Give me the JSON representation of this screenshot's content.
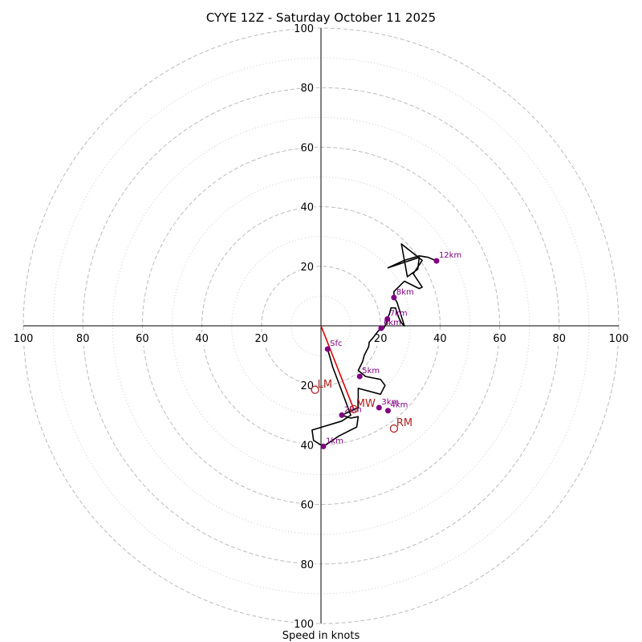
{
  "chart_data": {
    "type": "hodograph",
    "title": "CYYE 12Z - Saturday October 11 2025",
    "xlabel": "Speed in knots",
    "rings_major": [
      20,
      40,
      60,
      80,
      100
    ],
    "rings_minor": [
      10,
      30,
      50,
      70,
      90
    ],
    "range": [
      -100,
      100
    ],
    "tick_labels": {
      "top": [
        "100",
        "80",
        "60",
        "40",
        "20"
      ],
      "bottom": [
        "20",
        "40",
        "60",
        "80",
        "100"
      ],
      "left": [
        "100",
        "80",
        "60",
        "40",
        "20"
      ],
      "right": [
        "20",
        "40",
        "60",
        "80",
        "100"
      ]
    },
    "tick_values": [
      100,
      80,
      60,
      40,
      20
    ],
    "colors": {
      "grid": "#bbbbbb",
      "trace": "#000000",
      "points": "#800080",
      "mean_wind": "#dd0000",
      "storm_motion": "#b22222",
      "axis": "#000000"
    },
    "trace": [
      [
        2.2,
        -7.8
      ],
      [
        4,
        -14
      ],
      [
        7,
        -22
      ],
      [
        10,
        -30
      ],
      [
        7,
        -32
      ],
      [
        -3,
        -35
      ],
      [
        -2.5,
        -38.5
      ],
      [
        0.8,
        -40.5
      ],
      [
        6,
        -37
      ],
      [
        12,
        -34
      ],
      [
        12.5,
        -30.5
      ],
      [
        10,
        -31
      ],
      [
        7,
        -30
      ],
      [
        12.5,
        -27.5
      ],
      [
        12.5,
        -21
      ],
      [
        20,
        -23
      ],
      [
        21.5,
        -20
      ],
      [
        20,
        -18
      ],
      [
        15,
        -17
      ],
      [
        12.5,
        -15
      ],
      [
        14,
        -12
      ],
      [
        14.5,
        -10
      ],
      [
        15,
        -9
      ],
      [
        16,
        -7
      ],
      [
        16.2,
        -5.5
      ],
      [
        17.5,
        -4
      ],
      [
        19,
        -2
      ],
      [
        20.2,
        -0.8
      ],
      [
        21,
        -1
      ],
      [
        22,
        1
      ],
      [
        22.3,
        2.3
      ],
      [
        23,
        4
      ],
      [
        23.5,
        6
      ],
      [
        25,
        6
      ],
      [
        26,
        3
      ],
      [
        27,
        1
      ],
      [
        28,
        0
      ],
      [
        25.5,
        8
      ],
      [
        24.5,
        9.5
      ],
      [
        24.5,
        11.5
      ],
      [
        28,
        15
      ],
      [
        33,
        12.5
      ],
      [
        34,
        13
      ],
      [
        31,
        17.5
      ],
      [
        34,
        22
      ],
      [
        27,
        27.5
      ],
      [
        28,
        22
      ],
      [
        29,
        16.5
      ],
      [
        32.5,
        19
      ],
      [
        33,
        23
      ],
      [
        22.5,
        19.5
      ],
      [
        28,
        22
      ],
      [
        33,
        23.5
      ],
      [
        36,
        23
      ],
      [
        38.8,
        21.8
      ]
    ],
    "height_points": [
      {
        "label": "Sfc",
        "u": 2.2,
        "v": -7.8
      },
      {
        "label": "1km",
        "u": 0.8,
        "v": -40.5
      },
      {
        "label": "2km",
        "u": 7.0,
        "v": -30.0
      },
      {
        "label": "3km",
        "u": 19.5,
        "v": -27.5
      },
      {
        "label": "4km",
        "u": 22.5,
        "v": -28.5
      },
      {
        "label": "5km",
        "u": 13.0,
        "v": -17.0
      },
      {
        "label": "6km",
        "u": 20.2,
        "v": -0.8
      },
      {
        "label": "7km",
        "u": 22.3,
        "v": 2.3
      },
      {
        "label": "8km",
        "u": 24.5,
        "v": 9.5
      },
      {
        "label": "12km",
        "u": 38.8,
        "v": 21.8
      }
    ],
    "mean_wind_line": [
      [
        0,
        0
      ],
      [
        11,
        -28
      ]
    ],
    "storm_motions": [
      {
        "label": "LM",
        "u": -2.0,
        "v": -21.5
      },
      {
        "label": "MW",
        "u": 11.0,
        "v": -28.0
      },
      {
        "label": "RM",
        "u": 24.5,
        "v": -34.5
      }
    ]
  }
}
